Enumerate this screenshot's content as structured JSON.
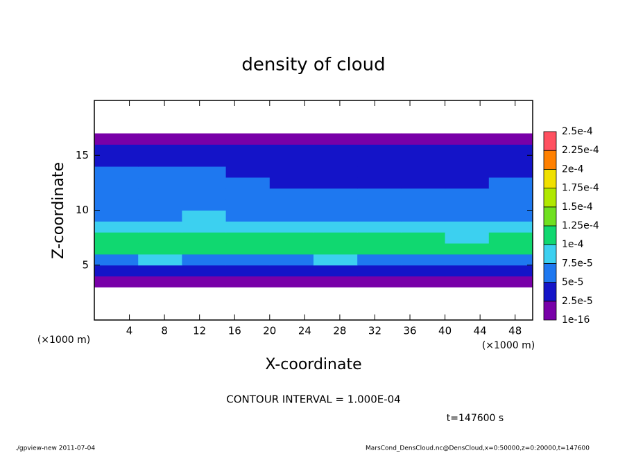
{
  "chart_data": {
    "type": "heatmap",
    "title": "density of cloud",
    "x_label": "X-coordinate",
    "y_label": "Z-coordinate",
    "x_unit_left": "(×1000 m)",
    "x_unit_right": "(×1000 m)",
    "contour_note": "CONTOUR INTERVAL = 1.000E-04",
    "time_note": "t=147600 s",
    "footer_left": "./gpview-new  2011-07-04",
    "footer_right": "MarsCond_DensCloud.nc@DensCloud,x=0:50000,z=0:20000,t=147600",
    "xlim": [
      0,
      50
    ],
    "ylim": [
      0,
      20
    ],
    "xticks": [
      4,
      8,
      12,
      16,
      20,
      24,
      28,
      32,
      36,
      40,
      44,
      48
    ],
    "yticks": [
      5,
      10,
      15
    ],
    "x": [
      2.5,
      7.5,
      12.5,
      17.5,
      22.5,
      27.5,
      32.5,
      37.5,
      42.5,
      47.5
    ],
    "y": [
      0.5,
      1.5,
      2.5,
      3.5,
      4.5,
      5.5,
      6.5,
      7.5,
      8.5,
      9.5,
      10.5,
      11.5,
      12.5,
      13.5,
      14.5,
      15.5,
      16.5,
      17.5,
      18.5,
      19.5
    ],
    "z": [
      [
        0,
        0,
        0,
        0,
        0,
        0,
        0,
        0,
        0,
        0
      ],
      [
        0,
        0,
        0,
        0,
        0,
        0,
        0,
        0,
        0,
        0
      ],
      [
        0,
        0,
        0,
        0,
        0,
        0,
        0,
        0,
        0,
        0
      ],
      [
        1e-05,
        1e-05,
        1e-05,
        1e-05,
        1e-05,
        1e-05,
        1e-05,
        1e-05,
        1e-05,
        1e-05
      ],
      [
        3e-05,
        3e-05,
        3e-05,
        2.5e-05,
        3e-05,
        3e-05,
        3e-05,
        3e-05,
        3e-05,
        3e-05
      ],
      [
        7e-05,
        7.5e-05,
        7e-05,
        7e-05,
        7e-05,
        7.5e-05,
        7e-05,
        7e-05,
        7e-05,
        7e-05
      ],
      [
        0.000115,
        0.00011,
        0.000105,
        0.0001,
        0.00012,
        0.00011,
        0.000105,
        0.00011,
        0.000105,
        0.00011
      ],
      [
        0.00011,
        0.000105,
        0.00011,
        0.000105,
        0.000115,
        0.000105,
        0.00011,
        0.0001,
        9.5e-05,
        0.000105
      ],
      [
        8e-05,
        8.5e-05,
        9e-05,
        8.5e-05,
        8e-05,
        8.5e-05,
        9e-05,
        8e-05,
        8e-05,
        8.5e-05
      ],
      [
        7e-05,
        7e-05,
        7.5e-05,
        7e-05,
        6.5e-05,
        7e-05,
        7e-05,
        6.5e-05,
        6.5e-05,
        6.5e-05
      ],
      [
        6.5e-05,
        6.5e-05,
        6.5e-05,
        6.5e-05,
        6e-05,
        6e-05,
        6e-05,
        6e-05,
        6e-05,
        6e-05
      ],
      [
        6e-05,
        6e-05,
        6e-05,
        6e-05,
        5.5e-05,
        5.5e-05,
        5.5e-05,
        5.5e-05,
        5.5e-05,
        6e-05
      ],
      [
        5.5e-05,
        5.5e-05,
        5.5e-05,
        5.5e-05,
        3e-05,
        4.5e-05,
        4e-05,
        4e-05,
        3.5e-05,
        5e-05
      ],
      [
        5e-05,
        5e-05,
        5e-05,
        4.5e-05,
        4e-05,
        4.5e-05,
        3e-05,
        3e-05,
        3e-05,
        4e-05
      ],
      [
        4.5e-05,
        4.5e-05,
        4.5e-05,
        4e-05,
        4e-05,
        3.5e-05,
        3e-05,
        3e-05,
        3e-05,
        3.5e-05
      ],
      [
        2.5e-05,
        2.5e-05,
        2.5e-05,
        2.5e-05,
        2.5e-05,
        2.5e-05,
        2.5e-05,
        2.5e-05,
        2.5e-05,
        2.5e-05
      ],
      [
        1e-05,
        1e-05,
        1e-05,
        1e-05,
        1e-05,
        1e-05,
        1e-05,
        1e-05,
        1e-05,
        1e-05
      ],
      [
        0,
        0,
        0,
        0,
        0,
        0,
        0,
        0,
        0,
        0
      ],
      [
        0,
        0,
        0,
        0,
        0,
        0,
        0,
        0,
        0,
        0
      ],
      [
        0,
        0,
        0,
        0,
        0,
        0,
        0,
        0,
        0,
        0
      ]
    ],
    "colorbar": {
      "levels": [
        1e-16,
        {
          "value": 2.5e-05,
          "label": "2.5e-5"
        },
        {
          "value": 5e-05,
          "label": "5e-5"
        },
        {
          "value": 7.5e-05,
          "label": "7.5e-5"
        },
        {
          "value": 0.0001,
          "label": "1e-4"
        },
        {
          "value": 0.000125,
          "label": "1.25e-4"
        },
        {
          "value": 0.00015,
          "label": "1.5e-4"
        },
        {
          "value": 0.000175,
          "label": "1.75e-4"
        },
        {
          "value": 0.0002,
          "label": "2e-4"
        },
        {
          "value": 0.000225,
          "label": "2.25e-4"
        },
        {
          "value": 0.00025,
          "label": "2.5e-4"
        }
      ],
      "colors": [
        "#7800a8",
        "#1414c8",
        "#1e78f0",
        "#3cd0f0",
        "#10d870",
        "#70e020",
        "#b0e800",
        "#f0e000",
        "#ff8000",
        "#ff5060"
      ]
    }
  }
}
